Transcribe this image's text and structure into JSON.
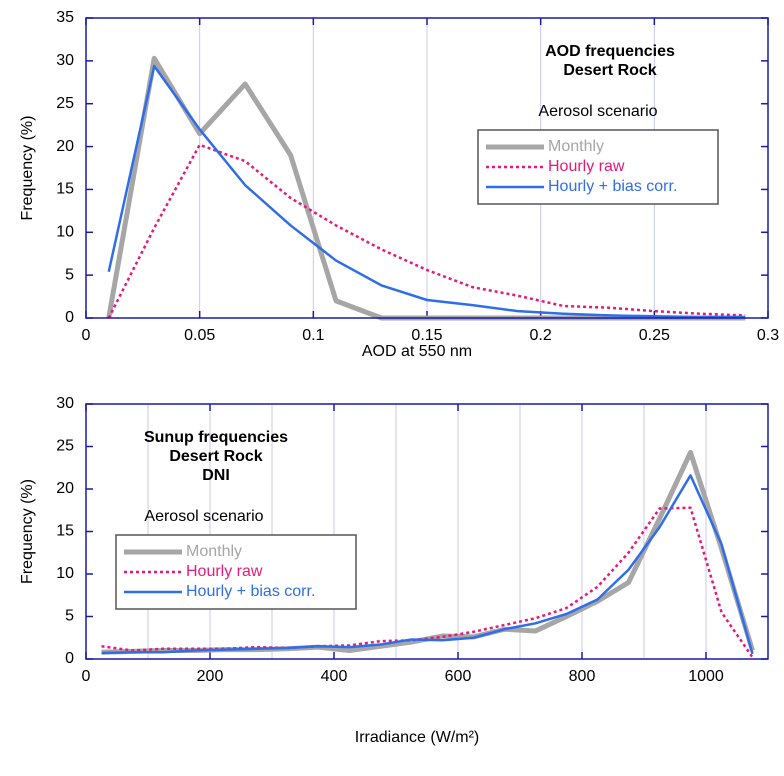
{
  "chart_data": [
    {
      "type": "line",
      "title": [
        "AOD frequencies",
        "Desert Rock"
      ],
      "x_label": "AOD at 550 nm",
      "y_label": "Frequency (%)",
      "legend_title": "Aerosol scenario",
      "legend_position": "right",
      "x": [
        0.01,
        0.03,
        0.05,
        0.07,
        0.09,
        0.11,
        0.13,
        0.15,
        0.17,
        0.19,
        0.21,
        0.23,
        0.25,
        0.27,
        0.29
      ],
      "series": [
        {
          "name": "Monthly",
          "color": "#a6a6a6",
          "width": 5,
          "dashed": false,
          "values": [
            0,
            30.3,
            21.5,
            27.3,
            19,
            2,
            0,
            0,
            0,
            0,
            0,
            0,
            0,
            0,
            0
          ]
        },
        {
          "name": "Hourly raw",
          "color": "#e6197a",
          "width": 2.5,
          "dashed": true,
          "values": [
            0,
            10.5,
            20.2,
            18.3,
            14,
            10.8,
            8,
            5.6,
            3.6,
            2.6,
            1.4,
            1.2,
            0.8,
            0.5,
            0.3
          ]
        },
        {
          "name": "Hourly + bias corr.",
          "color": "#2f6ee8",
          "width": 2.5,
          "dashed": false,
          "values": [
            5.4,
            29.4,
            22,
            15.5,
            10.8,
            6.7,
            3.8,
            2.1,
            1.5,
            0.8,
            0.5,
            0.3,
            0.2,
            0.1,
            0.1
          ]
        }
      ],
      "xlim": [
        0,
        0.3
      ],
      "xticks": [
        0,
        0.05,
        0.1,
        0.15,
        0.2,
        0.25,
        0.3
      ],
      "ylim": [
        0,
        35
      ],
      "yticks": [
        0,
        5,
        10,
        15,
        20,
        25,
        30,
        35
      ],
      "grid": true
    },
    {
      "type": "line",
      "title": [
        "Sunup frequencies",
        "Desert Rock",
        "DNI"
      ],
      "x_label": "Irradiance (W/m²)",
      "y_label": "Frequency (%)",
      "legend_title": "Aerosol scenario",
      "legend_position": "left",
      "x": [
        25,
        75,
        125,
        175,
        225,
        275,
        325,
        375,
        425,
        475,
        525,
        575,
        625,
        675,
        725,
        775,
        825,
        875,
        925,
        975,
        1025,
        1075
      ],
      "series": [
        {
          "name": "Monthly",
          "color": "#a6a6a6",
          "width": 5,
          "dashed": false,
          "values": [
            0.8,
            0.9,
            1.0,
            1.0,
            1.1,
            1.1,
            1.2,
            1.4,
            1.0,
            1.5,
            2.0,
            2.7,
            2.6,
            3.5,
            3.3,
            5.0,
            6.8,
            9.0,
            16.5,
            24.3,
            13,
            1.0
          ]
        },
        {
          "name": "Hourly raw",
          "color": "#e6197a",
          "width": 2.5,
          "dashed": true,
          "values": [
            1.5,
            1.0,
            1.2,
            1.2,
            1.2,
            1.4,
            1.3,
            1.5,
            1.6,
            2.1,
            2.2,
            2.6,
            3.2,
            4.0,
            4.8,
            6.0,
            8.5,
            12.5,
            17.7,
            17.8,
            5.5,
            0.2
          ]
        },
        {
          "name": "Hourly + bias corr.",
          "color": "#2f6ee8",
          "width": 2.5,
          "dashed": false,
          "values": [
            0.7,
            0.8,
            0.8,
            1.0,
            1.1,
            1.2,
            1.3,
            1.5,
            1.4,
            1.7,
            2.3,
            2.2,
            2.5,
            3.5,
            4.2,
            5.3,
            7.0,
            10.5,
            15.5,
            21.6,
            13.5,
            0.6
          ]
        }
      ],
      "xlim": [
        0,
        1100
      ],
      "xticks": [
        0,
        200,
        400,
        600,
        800,
        1000
      ],
      "minor_xticks": [
        100,
        300,
        500,
        700,
        900,
        1100
      ],
      "ylim": [
        0,
        30
      ],
      "yticks": [
        0,
        5,
        10,
        15,
        20,
        25,
        30
      ],
      "grid": true
    }
  ]
}
